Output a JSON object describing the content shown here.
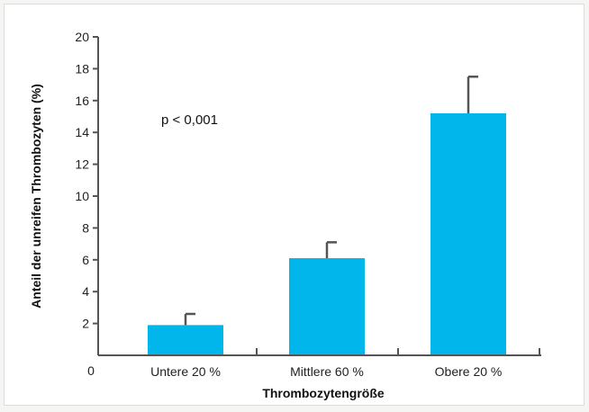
{
  "chart_data": {
    "type": "bar",
    "categories": [
      "Untere 20 %",
      "Mittlere 60 %",
      "Obere 20 %"
    ],
    "values": [
      1.9,
      6.1,
      15.2
    ],
    "error_upper": [
      2.6,
      7.1,
      17.5
    ],
    "xlabel": "Thrombozytengröße",
    "ylabel": "Anteil der unreifen Thrombozyten (%)",
    "ylim": [
      0,
      20
    ],
    "yticks": [
      2,
      4,
      6,
      8,
      10,
      12,
      14,
      16,
      18,
      20
    ],
    "origin_label": "0",
    "annotation": "p < 0,001",
    "grid": false,
    "colors": {
      "bar": "#00b6eb",
      "axis": "#555555",
      "error": "#555555"
    }
  }
}
